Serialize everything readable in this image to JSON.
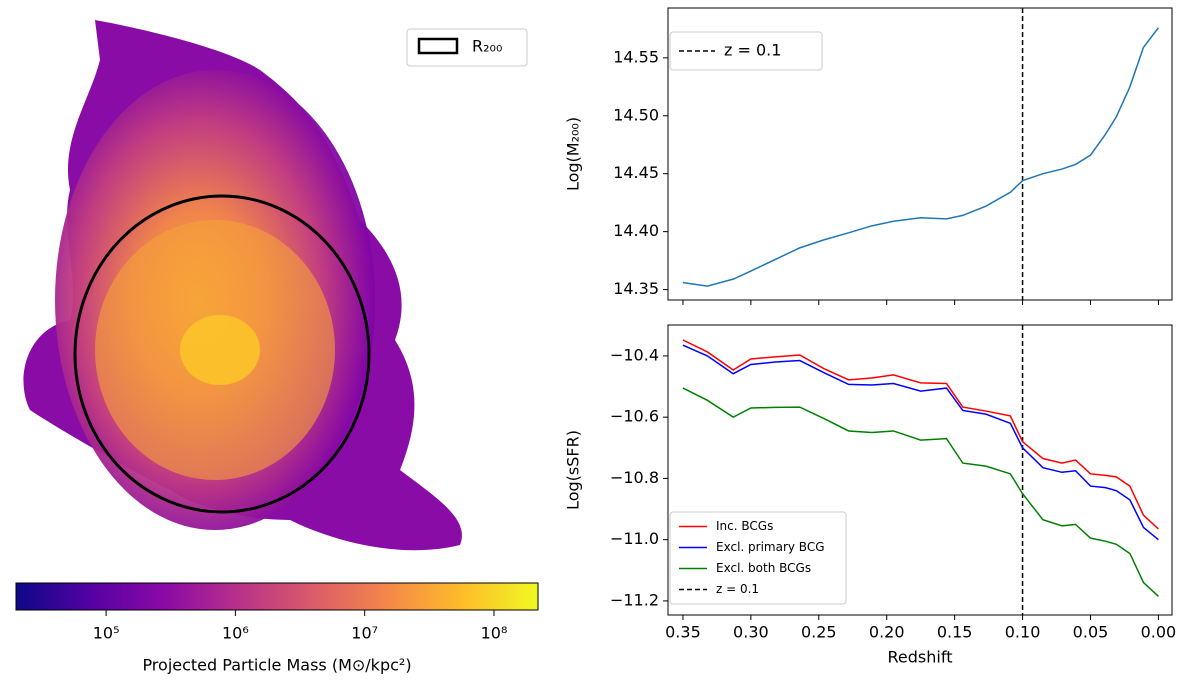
{
  "chart_data": [
    {
      "type": "image",
      "legend": "R₂₀₀",
      "colorbar": {
        "label": "Projected Particle Mass (M⊙/kpc²)",
        "log": true,
        "lim": [
          20100,
          219000000
        ],
        "ticks": [
          {
            "value": 100000,
            "label": "10⁵"
          },
          {
            "value": 1000000,
            "label": "10⁶"
          },
          {
            "value": 10000000,
            "label": "10⁷"
          },
          {
            "value": 100000000,
            "label": "10⁸"
          }
        ],
        "colors": [
          "#0d0887",
          "#5402a3",
          "#8b0aa5",
          "#b83289",
          "#db5c68",
          "#f48849",
          "#febd2a",
          "#f0f921"
        ]
      }
    },
    {
      "type": "line",
      "ylabel": "Log(M₂₀₀)",
      "x": [
        0.35,
        0.332,
        0.313,
        0.3,
        0.282,
        0.264,
        0.246,
        0.228,
        0.211,
        0.195,
        0.175,
        0.156,
        0.144,
        0.127,
        0.109,
        0.1,
        0.085,
        0.071,
        0.061,
        0.05,
        0.039,
        0.031,
        0.021,
        0.011,
        0.0
      ],
      "values": [
        14.356,
        14.353,
        14.359,
        14.366,
        14.376,
        14.386,
        14.393,
        14.399,
        14.405,
        14.409,
        14.412,
        14.411,
        14.414,
        14.422,
        14.434,
        14.444,
        14.45,
        14.454,
        14.458,
        14.466,
        14.484,
        14.499,
        14.525,
        14.559,
        14.576
      ],
      "color": "#1f77b4",
      "xlim": [
        0.361,
        -0.01
      ],
      "xticks": [
        0.35,
        {
          "value": 0.3,
          "label": "0.30"
        },
        0.25,
        {
          "value": 0.2,
          "label": "0.20"
        },
        0.15,
        {
          "value": 0.1,
          "label": "0.10"
        },
        0.05,
        {
          "value": 0.0,
          "label": "0.00"
        }
      ],
      "ylim": [
        14.341,
        14.593
      ],
      "yticks": [
        14.35,
        {
          "value": 14.4,
          "label": "14.40"
        },
        14.45,
        {
          "value": 14.5,
          "label": "14.50"
        },
        14.55
      ],
      "vline": 0.1,
      "vline_label": "z = 0.1",
      "legend": "upper left"
    },
    {
      "type": "line",
      "xlabel": "Redshift",
      "ylabel": "Log(sSFR)",
      "x": [
        0.35,
        0.332,
        0.313,
        0.3,
        0.282,
        0.264,
        0.246,
        0.228,
        0.211,
        0.195,
        0.175,
        0.156,
        0.144,
        0.127,
        0.109,
        0.1,
        0.085,
        0.071,
        0.061,
        0.05,
        0.039,
        0.031,
        0.021,
        0.011,
        0.0
      ],
      "series": [
        {
          "name": "Inc. BCGs",
          "color": "#ff0000",
          "values": [
            -10.348,
            -10.387,
            -10.446,
            -10.41,
            -10.403,
            -10.397,
            -10.442,
            -10.478,
            -10.472,
            -10.462,
            -10.488,
            -10.49,
            -10.567,
            -10.58,
            -10.596,
            -10.68,
            -10.735,
            -10.75,
            -10.74,
            -10.785,
            -10.79,
            -10.795,
            -10.825,
            -10.92,
            -10.965
          ]
        },
        {
          "name": "Excl. primary BCG",
          "color": "#0000ff",
          "values": [
            -10.365,
            -10.4,
            -10.458,
            -10.428,
            -10.42,
            -10.415,
            -10.455,
            -10.493,
            -10.495,
            -10.49,
            -10.515,
            -10.505,
            -10.578,
            -10.59,
            -10.62,
            -10.7,
            -10.765,
            -10.78,
            -10.775,
            -10.825,
            -10.83,
            -10.84,
            -10.87,
            -10.96,
            -11.0
          ]
        },
        {
          "name": "Excl. both BCGs",
          "color": "#008000",
          "values": [
            -10.505,
            -10.545,
            -10.6,
            -10.57,
            -10.568,
            -10.567,
            -10.605,
            -10.645,
            -10.65,
            -10.645,
            -10.675,
            -10.67,
            -10.75,
            -10.76,
            -10.785,
            -10.85,
            -10.935,
            -10.955,
            -10.95,
            -10.995,
            -11.005,
            -11.015,
            -11.045,
            -11.14,
            -11.185
          ]
        }
      ],
      "xlim": [
        0.361,
        -0.01
      ],
      "xticks": [
        0.35,
        {
          "value": 0.3,
          "label": "0.30"
        },
        0.25,
        {
          "value": 0.2,
          "label": "0.20"
        },
        0.15,
        {
          "value": 0.1,
          "label": "0.10"
        },
        0.05,
        {
          "value": 0.0,
          "label": "0.00"
        }
      ],
      "ylim": [
        -11.246,
        -10.299
      ],
      "yticks": [
        {
          "value": -11.2,
          "label": "−11.2"
        },
        {
          "value": -11.0,
          "label": "−11.0"
        },
        {
          "value": -10.8,
          "label": "−10.8"
        },
        {
          "value": -10.6,
          "label": "−10.6"
        },
        {
          "value": -10.4,
          "label": "−10.4"
        }
      ],
      "vline": 0.1,
      "vline_label": "z = 0.1",
      "legend": "lower left"
    }
  ]
}
